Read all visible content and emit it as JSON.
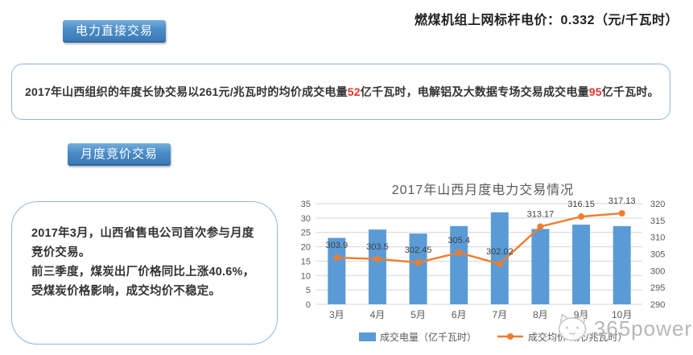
{
  "header": {
    "benchmark_price_note": "燃煤机组上网标杆电价：0.332（元/千瓦时）"
  },
  "section_direct_trade": {
    "badge": "电力直接交易",
    "text_parts": [
      {
        "t": "2017年山西组织的年度长协交易以261元/兆瓦时的均价成交电量",
        "red": false
      },
      {
        "t": "52",
        "red": true
      },
      {
        "t": "亿千瓦时，电解铝及大数据专场交易成交电量",
        "red": false
      },
      {
        "t": "95",
        "red": true
      },
      {
        "t": "亿千瓦时。",
        "red": false
      }
    ]
  },
  "section_monthly_bidding": {
    "badge": "月度竞价交易",
    "paragraphs": [
      "2017年3月，山西省售电公司首次参与月度竞价交易。",
      "前三季度，煤炭出厂价格同比上涨40.6%，受煤炭价格影响，成交均价不稳定。"
    ]
  },
  "chart_data": {
    "type": "bar",
    "subtype": "bar+line combo, dual axis",
    "title": "2017年山西月度电力交易情况",
    "categories": [
      "3月",
      "4月",
      "5月",
      "6月",
      "7月",
      "8月",
      "9月",
      "10月"
    ],
    "series": [
      {
        "name": "成交电量（亿千瓦时）",
        "type": "bar",
        "axis": "left",
        "values": [
          23.1,
          26,
          24.6,
          27.2,
          32,
          26.2,
          27.7,
          27.2
        ]
      },
      {
        "name": "成交均价（元/兆瓦时）",
        "type": "line",
        "axis": "right",
        "values": [
          303.9,
          303.5,
          302.45,
          305.4,
          302.02,
          313.17,
          316.15,
          317.13
        ],
        "data_labels": [
          "303.9",
          "303.5",
          "302.45",
          "305.4",
          "302.02",
          "313.17",
          "316.15",
          "317.13"
        ]
      }
    ],
    "left_axis": {
      "min": 0,
      "max": 35,
      "step": 5,
      "ticks": [
        "0",
        "5",
        "10",
        "15",
        "20",
        "25",
        "30",
        "35"
      ]
    },
    "right_axis": {
      "min": 290,
      "max": 320,
      "step": 5,
      "ticks": [
        "290",
        "295",
        "300",
        "305",
        "310",
        "315",
        "320"
      ]
    },
    "grid": true,
    "legend_position": "bottom"
  },
  "watermark": {
    "text": "365power"
  },
  "colors": {
    "badge_blue": "#4a8cc7",
    "box_border": "#8fb6d8",
    "highlight_red": "#e8342c",
    "bar_blue": "#5B9BD5",
    "line_orange": "#ED7D31",
    "axis_text": "#595959",
    "watermark_gray": "#b7b7b7"
  }
}
